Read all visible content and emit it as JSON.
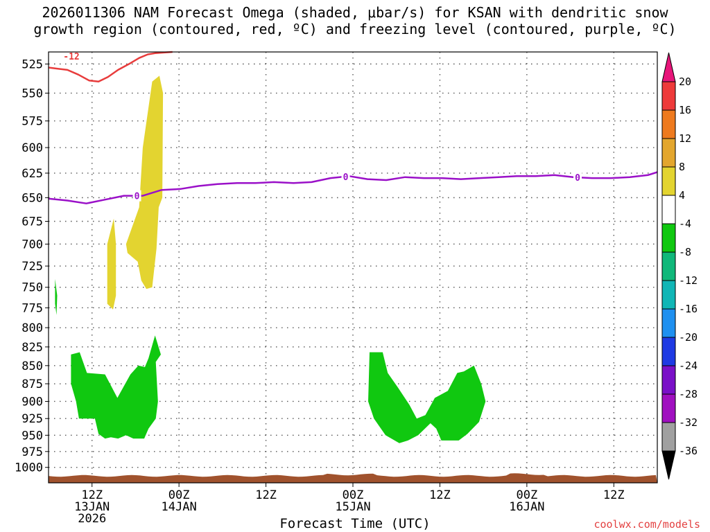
{
  "title_line1": "2026011306 NAM Forecast Omega (shaded, μbar/s) for KSAN with dendritic snow",
  "title_line2": "growth region (contoured, red, ºC) and freezing level (contoured, purple, ºC)",
  "credit": "coolwx.com/models",
  "chart_data": {
    "type": "heatmap",
    "xlabel": "Forecast Time (UTC)",
    "ylabel": "",
    "y_ticks": [
      525,
      550,
      575,
      600,
      625,
      650,
      675,
      700,
      725,
      750,
      775,
      800,
      825,
      850,
      875,
      900,
      925,
      950,
      975,
      1000
    ],
    "y_scale": "log",
    "y_range_hPa": [
      515,
      1025
    ],
    "x_range_hours": [
      6,
      90
    ],
    "x_ticks": [
      {
        "hour": 12,
        "line1": "12Z",
        "line2": "13JAN",
        "line3": "2026"
      },
      {
        "hour": 24,
        "line1": "00Z",
        "line2": "14JAN",
        "line3": ""
      },
      {
        "hour": 36,
        "line1": "12Z",
        "line2": "",
        "line3": ""
      },
      {
        "hour": 48,
        "line1": "00Z",
        "line2": "15JAN",
        "line3": ""
      },
      {
        "hour": 60,
        "line1": "12Z",
        "line2": "",
        "line3": ""
      },
      {
        "hour": 72,
        "line1": "00Z",
        "line2": "16JAN",
        "line3": ""
      },
      {
        "hour": 84,
        "line1": "12Z",
        "line2": "",
        "line3": ""
      }
    ],
    "grid": true,
    "colorbar": {
      "levels": [
        "20",
        "16",
        "12",
        "8",
        "4",
        "-4",
        "-8",
        "-12",
        "-16",
        "-20",
        "-24",
        "-28",
        "-32",
        "-36"
      ],
      "colors": [
        "#e8157a",
        "#ee3a3a",
        "#ee7a1e",
        "#e3a62e",
        "#e3d430",
        "#ffffff",
        "#10c810",
        "#10b87a",
        "#10b6b6",
        "#1e90f0",
        "#1e3ae3",
        "#7a10c8",
        "#a010c0",
        "#a0a0a0",
        "#000000"
      ]
    },
    "dendritic_contour": {
      "label": "-12",
      "color": "#e83c3c",
      "points": [
        [
          6,
          528
        ],
        [
          7.3,
          529
        ],
        [
          8.6,
          530
        ],
        [
          10.1,
          534
        ],
        [
          11.6,
          539
        ],
        [
          12.9,
          540
        ],
        [
          14.2,
          536
        ],
        [
          15.6,
          530
        ],
        [
          17.1,
          525
        ],
        [
          18.5,
          520
        ],
        [
          19.7,
          517
        ],
        [
          20.7,
          516
        ],
        [
          23.1,
          515
        ]
      ]
    },
    "freezing_contour": {
      "label": "0",
      "color": "#9a10c8",
      "label_hours": [
        18.2,
        47,
        79
      ],
      "points": [
        [
          6,
          651
        ],
        [
          8.6,
          653
        ],
        [
          11.2,
          656
        ],
        [
          13.8,
          652
        ],
        [
          16.4,
          648
        ],
        [
          19.0,
          648
        ],
        [
          21.6,
          642
        ],
        [
          24.2,
          641
        ],
        [
          26.7,
          638
        ],
        [
          29.3,
          636
        ],
        [
          32.0,
          635
        ],
        [
          34.5,
          635
        ],
        [
          37.1,
          634
        ],
        [
          39.8,
          635
        ],
        [
          42.3,
          634
        ],
        [
          44.9,
          630
        ],
        [
          47.5,
          628
        ],
        [
          50.0,
          631
        ],
        [
          52.6,
          632
        ],
        [
          55.2,
          629
        ],
        [
          57.8,
          630
        ],
        [
          60.3,
          630
        ],
        [
          62.9,
          631
        ],
        [
          65.5,
          630
        ],
        [
          68.1,
          629
        ],
        [
          70.6,
          628
        ],
        [
          73.2,
          628
        ],
        [
          75.8,
          627
        ],
        [
          78.4,
          629
        ],
        [
          81.0,
          630
        ],
        [
          83.6,
          630
        ],
        [
          86.2,
          629
        ],
        [
          88.7,
          627
        ],
        [
          90,
          624
        ]
      ]
    },
    "omega_regions": [
      {
        "value": 4,
        "color": "#e3d430",
        "points": [
          [
            16.7,
            700
          ],
          [
            18.5,
            660
          ],
          [
            19.0,
            600
          ],
          [
            20.3,
            540
          ],
          [
            21.3,
            535
          ],
          [
            21.8,
            550
          ],
          [
            21.7,
            650
          ],
          [
            21.2,
            660
          ],
          [
            20.9,
            705
          ],
          [
            20.3,
            750
          ],
          [
            19.5,
            752
          ],
          [
            18.8,
            742
          ],
          [
            18.3,
            720
          ],
          [
            16.9,
            710
          ]
        ]
      },
      {
        "value": 4,
        "color": "#e3d430",
        "points": [
          [
            14.1,
            700
          ],
          [
            15.0,
            672
          ],
          [
            15.3,
            700
          ],
          [
            15.3,
            760
          ],
          [
            14.9,
            777
          ],
          [
            14.1,
            770
          ]
        ]
      },
      {
        "value": -4,
        "color": "#10c810",
        "points": [
          [
            6.9,
            740
          ],
          [
            7.2,
            760
          ],
          [
            7.1,
            784
          ],
          [
            6.9,
            770
          ]
        ]
      },
      {
        "value": -4,
        "color": "#10c810",
        "points": [
          [
            9.1,
            835
          ],
          [
            10.3,
            832
          ],
          [
            11.3,
            860
          ],
          [
            13.8,
            862
          ],
          [
            15.5,
            895
          ],
          [
            17.3,
            862
          ],
          [
            18.4,
            850
          ],
          [
            19.3,
            852
          ],
          [
            19.8,
            840
          ],
          [
            20.7,
            810
          ],
          [
            21.5,
            835
          ],
          [
            20.8,
            845
          ],
          [
            21.1,
            900
          ],
          [
            20.8,
            925
          ],
          [
            19.8,
            940
          ],
          [
            19.2,
            955
          ],
          [
            17.7,
            955
          ],
          [
            16.7,
            950
          ],
          [
            15.6,
            955
          ],
          [
            14.6,
            953
          ],
          [
            13.8,
            955
          ],
          [
            12.9,
            948
          ],
          [
            12.4,
            925
          ],
          [
            10.2,
            925
          ],
          [
            9.8,
            900
          ],
          [
            9.1,
            875
          ]
        ]
      },
      {
        "value": -4,
        "color": "#10c810",
        "points": [
          [
            50.3,
            832
          ],
          [
            52.1,
            832
          ],
          [
            52.8,
            860
          ],
          [
            54.2,
            880
          ],
          [
            55.8,
            905
          ],
          [
            56.8,
            925
          ],
          [
            58.0,
            920
          ],
          [
            59.3,
            895
          ],
          [
            61.1,
            885
          ],
          [
            62.4,
            860
          ],
          [
            63.3,
            858
          ],
          [
            64.7,
            850
          ],
          [
            65.7,
            875
          ],
          [
            66.3,
            900
          ],
          [
            65.4,
            930
          ],
          [
            63.8,
            948
          ],
          [
            62.6,
            958
          ],
          [
            60.2,
            958
          ],
          [
            59.5,
            940
          ],
          [
            58.7,
            932
          ],
          [
            57.0,
            950
          ],
          [
            55.6,
            958
          ],
          [
            54.4,
            962
          ],
          [
            52.5,
            950
          ],
          [
            50.9,
            925
          ],
          [
            50.1,
            900
          ]
        ]
      }
    ],
    "terrain_color": "#a0522d"
  }
}
